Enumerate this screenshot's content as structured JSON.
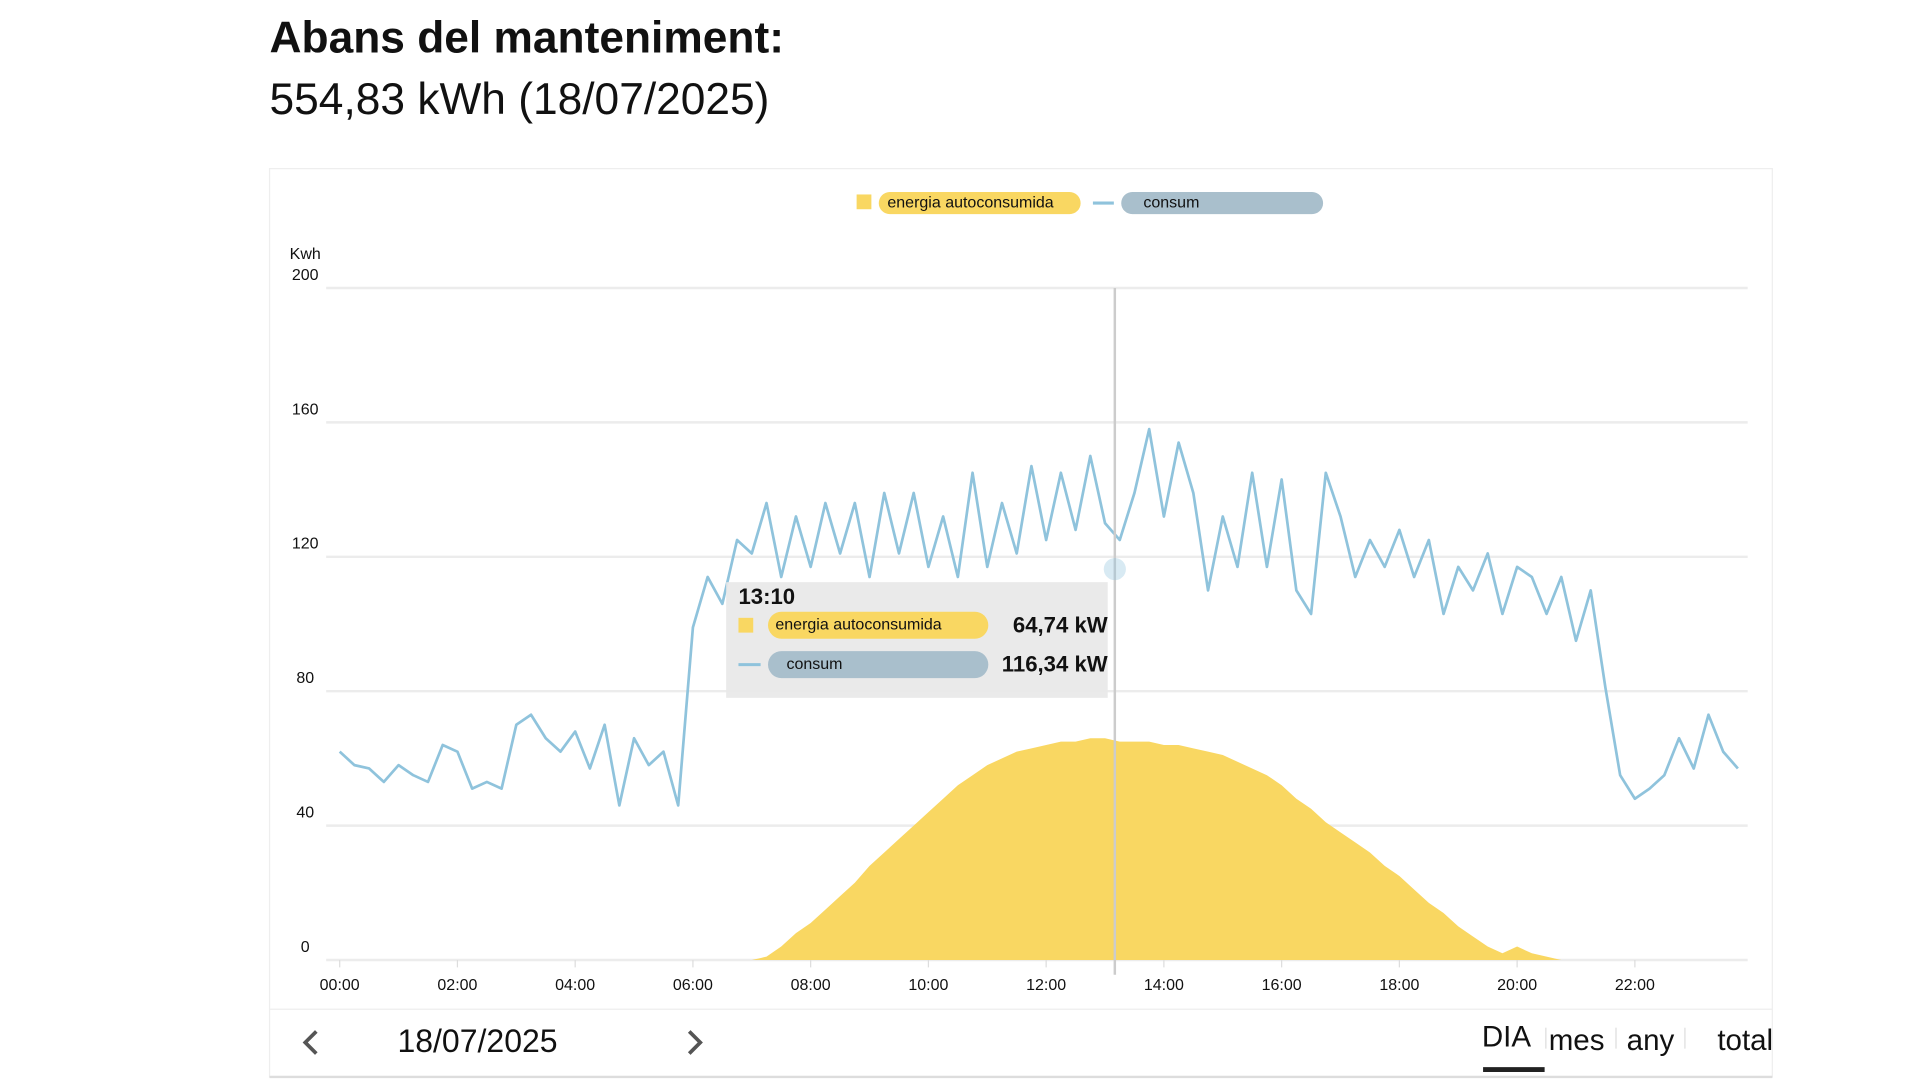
{
  "header": {
    "title": "Abans del manteniment:",
    "subtitle": "554,83 kWh (18/07/2025)"
  },
  "chart_data": {
    "type": "line",
    "y_label": "Kwh",
    "xlim": [
      0,
      24
    ],
    "xticks": [
      {
        "value": 0,
        "label": "00:00"
      },
      {
        "value": 2,
        "label": "02:00"
      },
      {
        "value": 4,
        "label": "04:00"
      },
      {
        "value": 6,
        "label": "06:00"
      },
      {
        "value": 8,
        "label": "08:00"
      },
      {
        "value": 10,
        "label": "10:00"
      },
      {
        "value": 12,
        "label": "12:00"
      },
      {
        "value": 14,
        "label": "14:00"
      },
      {
        "value": 16,
        "label": "16:00"
      },
      {
        "value": 18,
        "label": "18:00"
      },
      {
        "value": 20,
        "label": "20:00"
      },
      {
        "value": 22,
        "label": "22:00"
      }
    ],
    "ylim": [
      0,
      200
    ],
    "yticks": [
      0,
      40,
      80,
      120,
      160,
      200
    ],
    "grid": true,
    "x": [
      0,
      0.25,
      0.5,
      0.75,
      1,
      1.25,
      1.5,
      1.75,
      2,
      2.25,
      2.5,
      2.75,
      3,
      3.25,
      3.5,
      3.75,
      4,
      4.25,
      4.5,
      4.75,
      5,
      5.25,
      5.5,
      5.75,
      6,
      6.25,
      6.5,
      6.75,
      7,
      7.25,
      7.5,
      7.75,
      8,
      8.25,
      8.5,
      8.75,
      9,
      9.25,
      9.5,
      9.75,
      10,
      10.25,
      10.5,
      10.75,
      11,
      11.25,
      11.5,
      11.75,
      12,
      12.25,
      12.5,
      12.75,
      13,
      13.25,
      13.5,
      13.75,
      14,
      14.25,
      14.5,
      14.75,
      15,
      15.25,
      15.5,
      15.75,
      16,
      16.25,
      16.5,
      16.75,
      17,
      17.25,
      17.5,
      17.75,
      18,
      18.25,
      18.5,
      18.75,
      19,
      19.25,
      19.5,
      19.75,
      20,
      20.25,
      20.5,
      20.75,
      21,
      21.25,
      21.5,
      21.75,
      22,
      22.25,
      22.5,
      22.75,
      23,
      23.25,
      23.5,
      23.75
    ],
    "series": [
      {
        "name": "energia autoconsumida",
        "type": "area",
        "color": "#f9d762",
        "values": [
          0,
          0,
          0,
          0,
          0,
          0,
          0,
          0,
          0,
          0,
          0,
          0,
          0,
          0,
          0,
          0,
          0,
          0,
          0,
          0,
          0,
          0,
          0,
          0,
          0,
          0,
          0,
          0,
          0,
          1,
          4,
          8,
          11,
          15,
          19,
          23,
          28,
          32,
          36,
          40,
          44,
          48,
          52,
          55,
          58,
          60,
          62,
          63,
          64,
          65,
          65,
          66,
          66,
          65,
          65,
          65,
          64,
          64,
          63,
          62,
          61,
          59,
          57,
          55,
          52,
          48,
          45,
          41,
          38,
          35,
          32,
          28,
          25,
          21,
          17,
          14,
          10,
          7,
          4,
          2,
          4,
          2,
          1,
          0,
          0,
          0,
          0,
          0,
          0,
          0,
          0,
          0,
          0,
          0,
          0,
          0
        ]
      },
      {
        "name": "consum",
        "type": "line",
        "color": "#8fc3dc",
        "values": [
          62,
          58,
          57,
          53,
          58,
          55,
          53,
          64,
          62,
          51,
          53,
          51,
          70,
          73,
          66,
          62,
          68,
          57,
          70,
          46,
          66,
          58,
          62,
          46,
          99,
          114,
          106,
          125,
          121,
          136,
          114,
          132,
          117,
          136,
          121,
          136,
          114,
          139,
          121,
          139,
          117,
          132,
          114,
          145,
          117,
          136,
          121,
          147,
          125,
          145,
          128,
          150,
          130,
          125,
          139,
          158,
          132,
          154,
          139,
          110,
          132,
          117,
          145,
          117,
          143,
          110,
          103,
          145,
          132,
          114,
          125,
          117,
          128,
          114,
          125,
          103,
          117,
          110,
          121,
          103,
          117,
          114,
          103,
          114,
          95,
          110,
          81,
          55,
          48,
          51,
          55,
          66,
          57,
          73,
          62,
          57
        ]
      }
    ],
    "tooltip": {
      "time": "13:10",
      "values": [
        64.74,
        116.34
      ],
      "value_labels": [
        "64,74 kW",
        "116,34 kW"
      ]
    }
  },
  "nav": {
    "date": "18/07/2025",
    "tabs": [
      "DIA",
      "mes",
      "any",
      "total"
    ],
    "active": 0
  }
}
